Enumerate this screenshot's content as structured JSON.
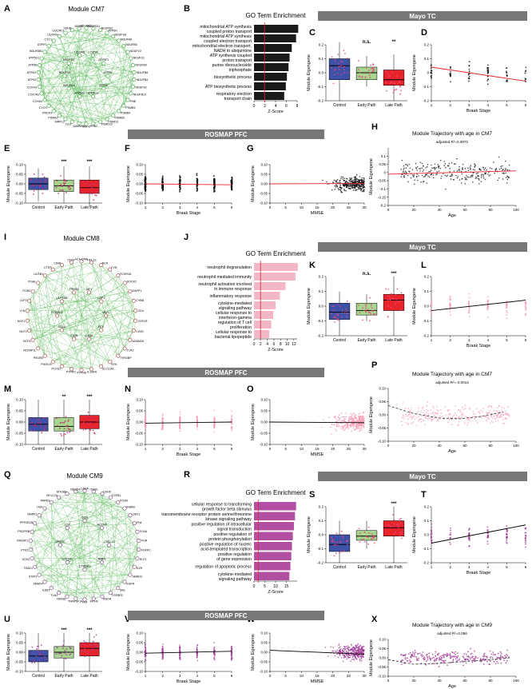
{
  "colors": {
    "green": "#2e9e2e",
    "dark_bar": "#1a1a1a",
    "pink_bar": "#f4b7c6",
    "violet_bar": "#b24fa3",
    "blue": "#3d51a8",
    "lightgreen": "#a7d68f",
    "red": "#e8242a",
    "pink_pt": "#e34f7b",
    "violet_pt": "#a13c99",
    "banner": "#777777"
  },
  "panels": {
    "A": "A",
    "B": "B",
    "C": "C",
    "D": "D",
    "E": "E",
    "F": "F",
    "G": "G",
    "H": "H",
    "I": "I",
    "J": "J",
    "K": "K",
    "L": "L",
    "M": "M",
    "N": "N",
    "O": "O",
    "P": "P",
    "Q": "Q",
    "R": "R",
    "S": "S",
    "T": "T",
    "U": "U",
    "V": "V",
    "W": "W",
    "X": "X"
  },
  "banners": {
    "mayo": "Mayo TC",
    "rosmap": "ROSMAP PFC"
  },
  "common": {
    "groups": [
      "Control",
      "Early Path",
      "Late Path"
    ],
    "module_eigengene": "Module Eigengene",
    "braak": "Braak Stage",
    "mmse": "MMSE",
    "age": "Age",
    "zscore": "Z-Score",
    "go_title": "GO Term Enrichment",
    "braak_ticks": [
      "1",
      "2",
      "3",
      "4",
      "5",
      "6"
    ],
    "mmse_ticks": [
      "0",
      "5",
      "10",
      "15",
      "20",
      "25",
      "30"
    ],
    "age_ticks": [
      "0",
      "20",
      "40",
      "60",
      "80",
      "100"
    ]
  },
  "networks": [
    {
      "title": "Module CM7",
      "nodes": [
        "NDUFA11",
        "NDUFB11",
        "NDUFB3",
        "ATP5H",
        "NDUFS8",
        "NDUFA8",
        "NDUFB5",
        "NDUFV2",
        "NDUFS1",
        "NDUFB9",
        "NDUFB8",
        "NDUFB4",
        "NDUFS2",
        "NDUFB10",
        "PHB",
        "PSMB3",
        "PSMB4",
        "PSMB5",
        "PSMD3",
        "PSMD12",
        "PHB2",
        "SNF8",
        "SAMM50",
        "DLD",
        "MRPL3",
        "PSMA3",
        "PRDX3",
        "CYCS",
        "COX6C",
        "COX7A2",
        "COX4I1",
        "ATP5J",
        "ATP5O",
        "ATP5B",
        "ATP5G1",
        "NDUFAB1",
        "ATPIF1",
        "CYC1",
        "UQCRH",
        "UQCRC1",
        "SDHB",
        "MDH2"
      ],
      "inner": [
        "ATP5D",
        "ATP5E",
        "ATP5C1",
        "ATP5J2",
        "NDUFA4",
        "NDUFS3",
        "NDUFS7",
        "UQCRQ",
        "COX5A",
        "ATP5F1"
      ]
    },
    {
      "title": "Module CM8",
      "nodes": [
        "HLA-DMA",
        "HCLS1",
        "NCK",
        "FYB",
        "FCGR2A",
        "DOCK2",
        "DAPP1",
        "CYBB",
        "CD4",
        "CSF1R",
        "CD53",
        "ADAM28",
        "TLR2",
        "TYROBP",
        "SYK",
        "SLC11A1",
        "IL10RA",
        "PTPN6",
        "PTPRC",
        "PLCG2",
        "PIK3CG",
        "PIK3R5",
        "NCKAP1L",
        "NCF4",
        "NCF2",
        "NCF1",
        "LYN",
        "LCP2",
        "ITGB2",
        "ITGAL",
        "LILRB1",
        "CTSS",
        "CD86",
        "CD74"
      ],
      "inner": [
        "VAV1",
        "BTK",
        "C1QA",
        "C1QB",
        "CD14",
        "FCER1G",
        "LAPTM5",
        "TREM2",
        "AIF1",
        "LCP1"
      ]
    },
    {
      "title": "Module CM9",
      "nodes": [
        "LAMA",
        "ITGB1",
        "CDH5",
        "TGFB1",
        "ITGA5",
        "IKBKB",
        "LMO1",
        "FN1",
        "FLNA",
        "FGR",
        "FGFR1",
        "ELF2",
        "EZR",
        "SMAD3",
        "EGFR",
        "SKIL",
        "TGFBR2",
        "RHOA",
        "MYH9",
        "VIM",
        "TNFRSF1A",
        "NFKB1",
        "TLN1",
        "IL6ST",
        "SMAD4",
        "STAT3",
        "TEAD1",
        "SOX2",
        "PTK2",
        "RASSF1",
        "PDGFRB",
        "PPP2R1B",
        "MAPK1",
        "HGF",
        "PARD3",
        "MYL12A",
        "MYD88",
        "NEDD4"
      ],
      "inner": [
        "CXCL12",
        "BMP6",
        "CTNNB1",
        "COL1A2",
        "SPARC",
        "LOX",
        "DCN",
        "ACTN4"
      ]
    }
  ],
  "chart_data": [
    {
      "panel": "B",
      "type": "bar",
      "orientation": "horizontal",
      "title": "GO Term Enrichment",
      "xlabel": "Z-Score",
      "categories": [
        "mitochondrial ATP synthesis coupled proton transport",
        "mitochondrial ATP synthesis coupled electron transport",
        "mitochondrial electron transport, NADH to ubiquinone",
        "ATP synthesis coupled proton transport",
        "purine ribonucleoside triphosphate",
        "biosynthetic process",
        "ATP biosynthetic process",
        "respiratory electron transport chain"
      ],
      "values": [
        8.2,
        7.8,
        7.0,
        6.6,
        6.4,
        6.1,
        5.9,
        5.6
      ],
      "xlim": [
        0,
        8
      ],
      "ticks": [
        "0",
        "2",
        "4",
        "6",
        "8"
      ],
      "ref_line": 1.96
    },
    {
      "panel": "J",
      "type": "bar",
      "orientation": "horizontal",
      "title": "GO Term Enrichment",
      "xlabel": "Z-Score",
      "categories": [
        "neutrophil degranulation",
        "neutrophil mediated immunity",
        "neutrophil activation involved in immune response",
        "inflammatory response",
        "cytokine-mediated signaling pathway",
        "cellular response to interferon-gamma",
        "regulation of T cell proliferation",
        "cellular response to bacterial lipopeptide"
      ],
      "values": [
        13.2,
        12.5,
        9.5,
        7.8,
        6.5,
        5.8,
        5.2,
        4.6
      ],
      "xlim": [
        0,
        13
      ],
      "ticks": [
        "0",
        "2",
        "4",
        "6",
        "8",
        "10",
        "12"
      ],
      "ref_line": 1.96
    },
    {
      "panel": "R",
      "type": "bar",
      "orientation": "horizontal",
      "title": "GO Term Enrichment",
      "xlabel": "Z-Score",
      "categories": [
        "cellular response to transforming growth factor beta stimulus",
        "transmembrane receptor protein serine/threonine kinase signaling pathway",
        "positive regulation of intracellular signal transduction",
        "positive regulation of protein phosphorylation",
        "positive regulation of nucleic acid-templated transcription",
        "positive regulation of gene expression",
        "regulation of apoptotic process",
        "cytokine-mediated signaling pathway"
      ],
      "values": [
        19.5,
        19.0,
        18.5,
        18.0,
        17.6,
        17.3,
        16.9,
        16.4
      ],
      "xlim": [
        0,
        20
      ],
      "ticks": [
        "0",
        "5",
        "10",
        "15"
      ],
      "ref_line": 1.96
    },
    {
      "panel": "C",
      "type": "box",
      "ylabel": "Module Eigengene",
      "categories": [
        "Control",
        "Early Path",
        "Late Path"
      ],
      "medians": [
        0.05,
        0.0,
        -0.05
      ],
      "q1": [
        -0.05,
        -0.05,
        -0.09
      ],
      "q3": [
        0.1,
        0.04,
        0.02
      ],
      "min": [
        -0.2,
        -0.1,
        -0.2
      ],
      "max": [
        0.22,
        0.12,
        0.13
      ],
      "ylim": [
        -0.2,
        0.2
      ],
      "yticks": [
        "-0.2",
        "-0.1",
        "0.0",
        "0.1",
        "0.2"
      ],
      "sig": [
        "",
        "n.s.",
        "**"
      ]
    },
    {
      "panel": "D",
      "type": "scatter",
      "ylabel": "Module Eigengene",
      "xlabel": "Braak Stage",
      "xlim": [
        1,
        6
      ],
      "ylim": [
        -0.2,
        0.2
      ],
      "yticks": [
        "-0.2",
        "-0.1",
        "0",
        "0.1",
        "0.2"
      ],
      "fit": [
        0.04,
        -0.06
      ]
    },
    {
      "panel": "E",
      "type": "box",
      "ylabel": "Module Eigengene",
      "categories": [
        "Control",
        "Early Path",
        "Late Path"
      ],
      "medians": [
        0.0,
        -0.01,
        -0.02
      ],
      "q1": [
        -0.03,
        -0.04,
        -0.05
      ],
      "q3": [
        0.03,
        0.02,
        0.02
      ],
      "min": [
        -0.09,
        -0.1,
        -0.12
      ],
      "max": [
        0.08,
        0.09,
        0.09
      ],
      "ylim": [
        -0.1,
        0.1
      ],
      "yticks": [
        "-0.10",
        "-0.05",
        "0.00",
        "0.05",
        "0.10"
      ],
      "sig": [
        "",
        "***",
        "***"
      ]
    },
    {
      "panel": "F",
      "type": "scatter",
      "ylabel": "Module Eigengene",
      "xlabel": "Braak Stage",
      "xlim": [
        1,
        6
      ],
      "ylim": [
        -0.1,
        0.1
      ],
      "yticks": [
        "-0.10",
        "-0.05",
        "0.00",
        "0.05",
        "0.10"
      ],
      "fit": [
        0.0,
        -0.005
      ]
    },
    {
      "panel": "G",
      "type": "scatter",
      "ylabel": "Module Eigengene",
      "xlabel": "MMSE",
      "xlim": [
        0,
        30
      ],
      "ylim": [
        -0.1,
        0.1
      ],
      "yticks": [
        "-0.10",
        "-0.05",
        "0.00",
        "0.05",
        "0.10"
      ],
      "fit": [
        0.0,
        0.002
      ]
    },
    {
      "panel": "H",
      "type": "scatter",
      "title": "Module Trajectory with age in CM7",
      "annotation": "adjusted R²=0.0072",
      "ylabel": "Module Eigengene",
      "xlabel": "Age",
      "xlim": [
        0,
        100
      ],
      "ylim": [
        -0.2,
        0.15
      ],
      "yticks": [
        "-0.2",
        "-0.15",
        "-0.1",
        "-0.05",
        "0",
        "0.05",
        "0.1"
      ],
      "fit": [
        -0.01,
        0.01
      ]
    },
    {
      "panel": "K",
      "type": "box",
      "ylabel": "Module Eigengene",
      "categories": [
        "Control",
        "Early Path",
        "Late Path"
      ],
      "medians": [
        -0.04,
        -0.03,
        0.04
      ],
      "q1": [
        -0.09,
        -0.06,
        -0.03
      ],
      "q3": [
        0.02,
        0.02,
        0.08
      ],
      "min": [
        -0.2,
        -0.1,
        -0.2
      ],
      "max": [
        0.1,
        0.08,
        0.2
      ],
      "ylim": [
        -0.2,
        0.2
      ],
      "yticks": [
        "-0.2",
        "-0.1",
        "0.0",
        "0.1",
        "0.2"
      ],
      "sig": [
        "",
        "n.s.",
        "***"
      ]
    },
    {
      "panel": "L",
      "type": "scatter",
      "ylabel": "Module Eigengene",
      "xlabel": "Braak Stage",
      "xlim": [
        1,
        6
      ],
      "ylim": [
        -0.2,
        0.2
      ],
      "yticks": [
        "-0.2",
        "-0.1",
        "0.0",
        "0.1",
        "0.2"
      ],
      "fit": [
        -0.03,
        0.04
      ]
    },
    {
      "panel": "M",
      "type": "box",
      "ylabel": "Module Eigengene",
      "categories": [
        "Control",
        "Early Path",
        "Late Path"
      ],
      "medians": [
        -0.01,
        -0.02,
        0.0
      ],
      "q1": [
        -0.04,
        -0.04,
        -0.03
      ],
      "q3": [
        0.02,
        0.02,
        0.03
      ],
      "min": [
        -0.1,
        -0.1,
        -0.1
      ],
      "max": [
        0.1,
        0.1,
        0.1
      ],
      "ylim": [
        -0.1,
        0.1
      ],
      "yticks": [
        "-0.10",
        "-0.05",
        "0.00",
        "0.05",
        "0.10"
      ],
      "sig": [
        "",
        "**",
        "***"
      ]
    },
    {
      "panel": "N",
      "type": "scatter",
      "ylabel": "Module Eigengene",
      "xlabel": "Braak Stage",
      "xlim": [
        1,
        6
      ],
      "ylim": [
        -0.1,
        0.1
      ],
      "yticks": [
        "-0.10",
        "-0.05",
        "0.00",
        "0.05",
        "0.10"
      ],
      "fit": [
        -0.005,
        0.0
      ]
    },
    {
      "panel": "O",
      "type": "scatter",
      "ylabel": "Module Eigengene",
      "xlabel": "MMSE",
      "xlim": [
        0,
        30
      ],
      "ylim": [
        -0.1,
        0.1
      ],
      "yticks": [
        "-0.10",
        "-0.05",
        "0.00",
        "0.05",
        "0.10"
      ],
      "fit": [
        0.0,
        -0.003
      ]
    },
    {
      "panel": "P",
      "type": "scatter",
      "title": "Module Trajectory with age in CM7",
      "annotation": "adjusted R²=-0.0014",
      "ylabel": "Module Eigengene",
      "xlabel": "Age",
      "xlim": [
        0,
        100
      ],
      "ylim": [
        -0.1,
        0.1
      ],
      "yticks": [
        "-0.10",
        "-0.05",
        "0.00",
        "0.05",
        "0.10"
      ],
      "curve": [
        [
          0,
          0.035
        ],
        [
          20,
          0.005
        ],
        [
          40,
          -0.012
        ],
        [
          55,
          -0.015
        ],
        [
          70,
          -0.008
        ],
        [
          90,
          0.01
        ]
      ]
    },
    {
      "panel": "S",
      "type": "box",
      "ylabel": "Module Eigengene",
      "categories": [
        "Control",
        "Early Path",
        "Late Path"
      ],
      "medians": [
        -0.07,
        -0.01,
        0.05
      ],
      "q1": [
        -0.12,
        -0.04,
        -0.01
      ],
      "q3": [
        0.0,
        0.03,
        0.1
      ],
      "min": [
        -0.2,
        -0.1,
        -0.2
      ],
      "max": [
        0.1,
        0.1,
        0.2
      ],
      "ylim": [
        -0.2,
        0.2
      ],
      "yticks": [
        "-0.2",
        "-0.1",
        "0.0",
        "0.1",
        "0.2"
      ],
      "sig": [
        "",
        "",
        "***"
      ]
    },
    {
      "panel": "T",
      "type": "scatter",
      "ylabel": "Module Eigengene",
      "xlabel": "Braak Stage",
      "xlim": [
        1,
        6
      ],
      "ylim": [
        -0.2,
        0.2
      ],
      "yticks": [
        "-0.2",
        "-0.1",
        "0.0",
        "0.1",
        "0.2"
      ],
      "fit": [
        -0.06,
        0.07
      ]
    },
    {
      "panel": "U",
      "type": "box",
      "ylabel": "Module Eigengene",
      "categories": [
        "Control",
        "Early Path",
        "Late Path"
      ],
      "medians": [
        -0.02,
        0.0,
        0.02
      ],
      "q1": [
        -0.05,
        -0.03,
        -0.02
      ],
      "q3": [
        0.01,
        0.03,
        0.05
      ],
      "min": [
        -0.1,
        -0.1,
        -0.1
      ],
      "max": [
        0.1,
        0.1,
        0.1
      ],
      "ylim": [
        -0.1,
        0.1
      ],
      "yticks": [
        "-0.10",
        "-0.05",
        "0.00",
        "0.05",
        "0.10"
      ],
      "sig": [
        "",
        "***",
        "***"
      ]
    },
    {
      "panel": "V",
      "type": "scatter",
      "ylabel": "Module Eigengene",
      "xlabel": "Braak Stage",
      "xlim": [
        1,
        6
      ],
      "ylim": [
        -0.1,
        0.1
      ],
      "yticks": [
        "-0.10",
        "-0.05",
        "0.00",
        "0.05",
        "0.10"
      ],
      "fit": [
        -0.005,
        0.005
      ]
    },
    {
      "panel": "W",
      "type": "scatter",
      "ylabel": "Module Eigengene",
      "xlabel": "MMSE",
      "xlim": [
        0,
        30
      ],
      "ylim": [
        -0.1,
        0.1
      ],
      "yticks": [
        "-0.10",
        "-0.05",
        "0.00",
        "0.05",
        "0.10"
      ],
      "fit": [
        0.01,
        -0.01
      ]
    },
    {
      "panel": "X",
      "type": "scatter",
      "title": "Module Trajectory with age in CM9",
      "annotation": "adjusted R²=0.056",
      "ylabel": "Module Eigengene",
      "xlabel": "Age",
      "xlim": [
        0,
        100
      ],
      "ylim": [
        -0.1,
        0.1
      ],
      "yticks": [
        "-0.10",
        "-0.05",
        "0.00",
        "0.05",
        "0.10"
      ],
      "curve": [
        [
          0,
          -0.01
        ],
        [
          20,
          -0.035
        ],
        [
          40,
          -0.03
        ],
        [
          60,
          -0.02
        ],
        [
          80,
          -0.01
        ],
        [
          95,
          0.0
        ]
      ]
    }
  ]
}
